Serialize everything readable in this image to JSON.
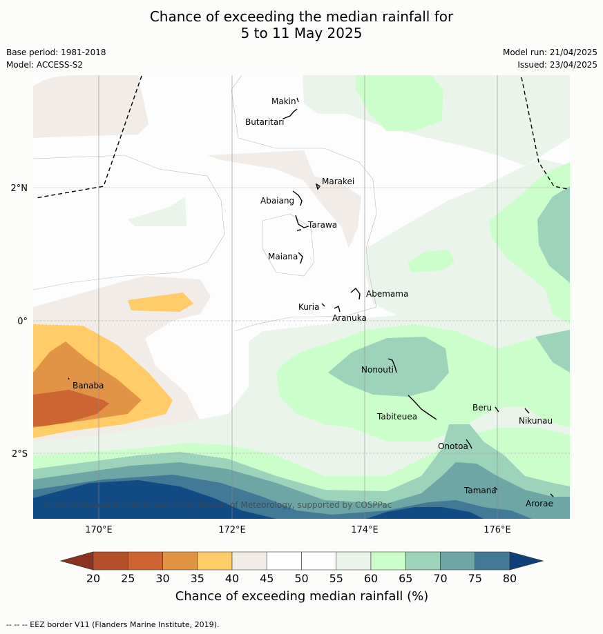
{
  "title_line1": "Chance of exceeding the median rainfall for",
  "title_line2": "5 to 11 May 2025",
  "meta_left": {
    "base_period": "Base period: 1981-2018",
    "model": "Model: ACCESS-S2"
  },
  "meta_right": {
    "model_run": "Model run: 21/04/2025",
    "issued": "Issued: 23/04/2025"
  },
  "lat_labels": [
    "2°N",
    "0°",
    "2°S"
  ],
  "lon_labels": [
    "170°E",
    "172°E",
    "174°E",
    "176°E"
  ],
  "places": [
    "Makin",
    "Butaritari",
    "Marakei",
    "Abaiang",
    "Tarawa",
    "Maiana",
    "Abemama",
    "Kuria",
    "Aranuka",
    "Nonouti",
    "Banaba",
    "Tabiteuea",
    "Beru",
    "Nikunau",
    "Onotoa",
    "Tamana",
    "Arorae"
  ],
  "copyright": "© Commonwealth of Australia 2025, Bureau of Meteorology, supported by COSPPac",
  "colorbar": {
    "ticks": [
      "20",
      "25",
      "30",
      "35",
      "40",
      "45",
      "50",
      "55",
      "60",
      "65",
      "70",
      "75",
      "80"
    ],
    "colors": [
      "#b4512b",
      "#cd6533",
      "#e29446",
      "#ffcc68",
      "#f1ece7",
      "#ffffff",
      "#fdfdfd",
      "#ebf4ea",
      "#ccfecc",
      "#9dd2bb",
      "#6ea6a6",
      "#427997",
      "#124b84"
    ],
    "under_color": "#8b3320",
    "over_color": "#0f3f78",
    "title": "Chance of exceeding median rainfall (%)"
  },
  "footer": "--  --  -- EEZ border V11 (Flanders Marine Institute, 2019)."
}
